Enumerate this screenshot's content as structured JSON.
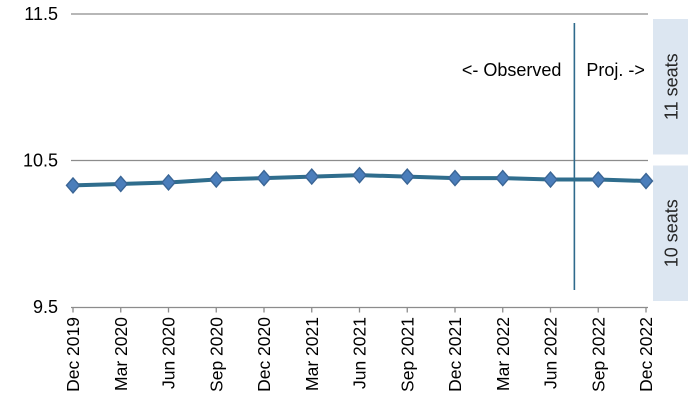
{
  "chart_data": {
    "type": "line",
    "title": "",
    "categories": [
      "Dec 2019",
      "Mar 2020",
      "Jun 2020",
      "Sep 2020",
      "Dec 2020",
      "Mar 2021",
      "Jun 2021",
      "Sep 2021",
      "Dec 2021",
      "Mar 2022",
      "Jun 2022",
      "Sep 2022",
      "Dec 2022"
    ],
    "values": [
      10.33,
      10.34,
      10.35,
      10.37,
      10.38,
      10.39,
      10.4,
      10.39,
      10.38,
      10.38,
      10.37,
      10.37,
      10.36
    ],
    "ylim": [
      9.5,
      11.5
    ],
    "yticks": [
      {
        "label": "11.5",
        "value": 11.5,
        "gridline": true
      },
      {
        "label": "10.5",
        "value": 10.5,
        "gridline": true
      },
      {
        "label": "9.5",
        "value": 9.5,
        "gridline": false
      }
    ],
    "xlabel": "",
    "ylabel": "",
    "grid": "horizontal",
    "legend": "none",
    "annotations": {
      "observed_label": "<- Observed",
      "projected_label": "Proj. ->",
      "divider_between": [
        "Jun 2022",
        "Sep 2022"
      ]
    },
    "right_bands": [
      {
        "label": "11 seats",
        "from": 10.5,
        "to": 11.5
      },
      {
        "label": "10 seats",
        "from": 9.5,
        "to": 10.5
      }
    ]
  },
  "colors": {
    "line": "#2F6D8D",
    "marker_fill": "#4B7EBB",
    "marker_stroke": "#3A6595",
    "divider": "#2F6A8C",
    "band_bg": "#DCE6F1",
    "band_text": "#262626",
    "grid": "#8C8C8C",
    "axis": "#8C8C8C",
    "text": "#000000"
  }
}
